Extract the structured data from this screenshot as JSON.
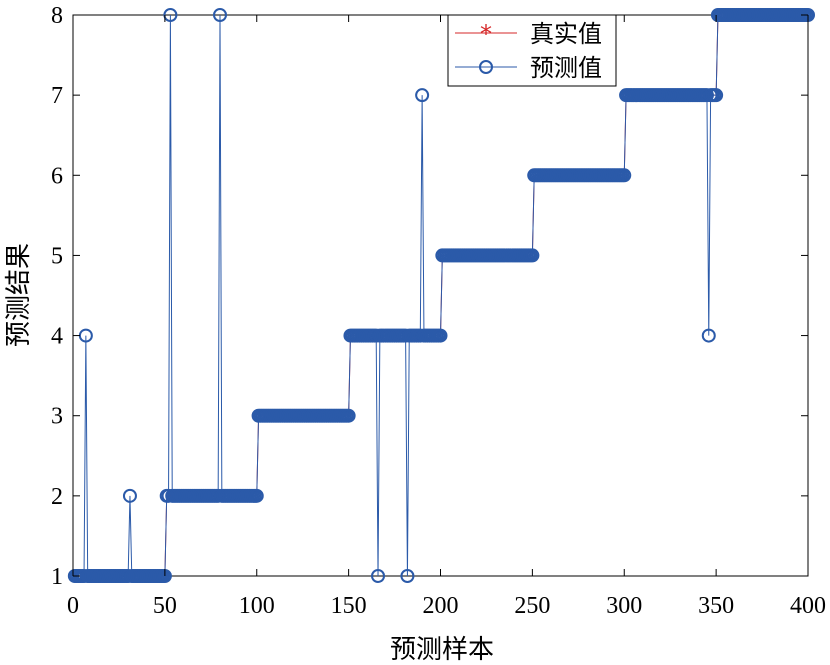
{
  "chart_data": {
    "type": "line",
    "xlabel": "预测样本",
    "ylabel": "预测结果",
    "xlim": [
      0,
      400
    ],
    "ylim": [
      1,
      8
    ],
    "xticks": [
      0,
      50,
      100,
      150,
      200,
      250,
      300,
      350,
      400
    ],
    "yticks": [
      1,
      2,
      3,
      4,
      5,
      6,
      7,
      8
    ],
    "grid": false,
    "legend_position": "top-right",
    "segments": [
      {
        "x_start": 1,
        "x_end": 50,
        "value": 1
      },
      {
        "x_start": 51,
        "x_end": 100,
        "value": 2
      },
      {
        "x_start": 101,
        "x_end": 150,
        "value": 3
      },
      {
        "x_start": 151,
        "x_end": 200,
        "value": 4
      },
      {
        "x_start": 201,
        "x_end": 250,
        "value": 5
      },
      {
        "x_start": 251,
        "x_end": 300,
        "value": 6
      },
      {
        "x_start": 301,
        "x_end": 350,
        "value": 7
      },
      {
        "x_start": 351,
        "x_end": 400,
        "value": 8
      }
    ],
    "series": [
      {
        "name": "真实值",
        "color": "#d62728",
        "marker": "star",
        "outliers": []
      },
      {
        "name": "预测值",
        "color": "#2b5aa9",
        "marker": "circle",
        "outliers": [
          {
            "x": 7,
            "y": 4
          },
          {
            "x": 31,
            "y": 2
          },
          {
            "x": 51,
            "y": 2
          },
          {
            "x": 53,
            "y": 8
          },
          {
            "x": 80,
            "y": 8
          },
          {
            "x": 166,
            "y": 1
          },
          {
            "x": 182,
            "y": 1
          },
          {
            "x": 190,
            "y": 7
          },
          {
            "x": 346,
            "y": 4
          }
        ]
      }
    ]
  }
}
